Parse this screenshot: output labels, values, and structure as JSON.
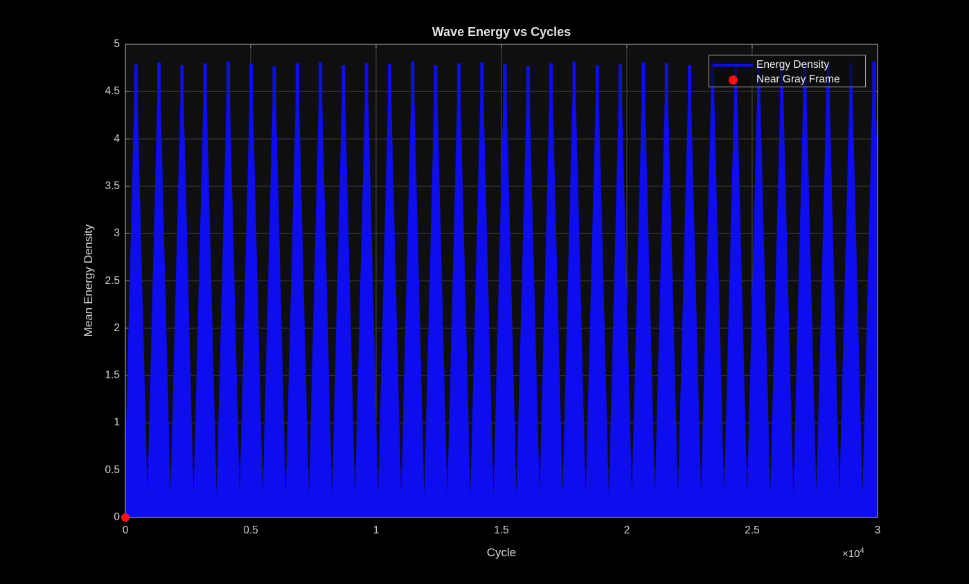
{
  "figure": {
    "bg_color": "#000000",
    "axes_bg_color": "#0f0f0f",
    "grid_color": "#474747",
    "frame_color": "#9a9a9a",
    "tick_color": "#9a9a9a",
    "text_color": "#d4d4d4"
  },
  "chart_data": {
    "type": "line",
    "title": "Wave Energy vs Cycles",
    "xlabel": "Cycle",
    "ylabel": "Mean Energy Density",
    "x_axis_multiplier": {
      "base": "×10",
      "exp": "4"
    },
    "xlim": [
      0,
      30000
    ],
    "ylim": [
      0,
      5
    ],
    "grid": true,
    "x_ticks": [
      {
        "v": 0,
        "label": "0"
      },
      {
        "v": 5000,
        "label": "0.5"
      },
      {
        "v": 10000,
        "label": "1"
      },
      {
        "v": 15000,
        "label": "1.5"
      },
      {
        "v": 20000,
        "label": "2"
      },
      {
        "v": 25000,
        "label": "2.5"
      },
      {
        "v": 30000,
        "label": "3"
      }
    ],
    "y_ticks": [
      {
        "v": 0,
        "label": "0"
      },
      {
        "v": 0.5,
        "label": "0.5"
      },
      {
        "v": 1,
        "label": "1"
      },
      {
        "v": 1.5,
        "label": "1.5"
      },
      {
        "v": 2,
        "label": "2"
      },
      {
        "v": 2.5,
        "label": "2.5"
      },
      {
        "v": 3,
        "label": "3"
      },
      {
        "v": 3.5,
        "label": "3.5"
      },
      {
        "v": 4,
        "label": "4"
      },
      {
        "v": 4.5,
        "label": "4.5"
      },
      {
        "v": 5,
        "label": "5"
      }
    ],
    "legend": {
      "position": "northeast",
      "entries": [
        {
          "label": "Energy Density",
          "marker": "line",
          "color": "#0d0dee"
        },
        {
          "label": "Near Gray Frame",
          "marker": "dot",
          "color": "#ff1111"
        }
      ]
    },
    "series": [
      {
        "name": "Energy Density",
        "color": "#0d0dee",
        "pattern": "dense rectified oscillation with triangular beat envelope",
        "baseline_band_top": 0.25,
        "base_half_width_cycles": 483,
        "tip_half_width_cycles": 70,
        "tip_drop": 0.4,
        "beats": [
          [
            420,
            4.79
          ],
          [
            1340,
            4.81
          ],
          [
            2260,
            4.78
          ],
          [
            3180,
            4.8
          ],
          [
            4100,
            4.82
          ],
          [
            5020,
            4.79
          ],
          [
            5940,
            4.77
          ],
          [
            6860,
            4.8
          ],
          [
            7780,
            4.81
          ],
          [
            8700,
            4.78
          ],
          [
            9620,
            4.8
          ],
          [
            10540,
            4.79
          ],
          [
            11460,
            4.82
          ],
          [
            12380,
            4.78
          ],
          [
            13300,
            4.8
          ],
          [
            14220,
            4.81
          ],
          [
            15140,
            4.79
          ],
          [
            16060,
            4.77
          ],
          [
            16980,
            4.8
          ],
          [
            17900,
            4.82
          ],
          [
            18820,
            4.78
          ],
          [
            19740,
            4.79
          ],
          [
            20660,
            4.81
          ],
          [
            21580,
            4.8
          ],
          [
            22500,
            4.78
          ],
          [
            23420,
            4.82
          ],
          [
            24340,
            4.79
          ],
          [
            25260,
            4.8
          ],
          [
            26180,
            4.77
          ],
          [
            27100,
            4.81
          ],
          [
            28020,
            4.79
          ],
          [
            28940,
            4.8
          ],
          [
            29860,
            4.82
          ]
        ]
      },
      {
        "name": "Near Gray Frame",
        "color": "#ff1111",
        "marker": "dot",
        "marker_radius_px": 6,
        "points": [
          [
            0,
            0
          ]
        ]
      }
    ]
  }
}
